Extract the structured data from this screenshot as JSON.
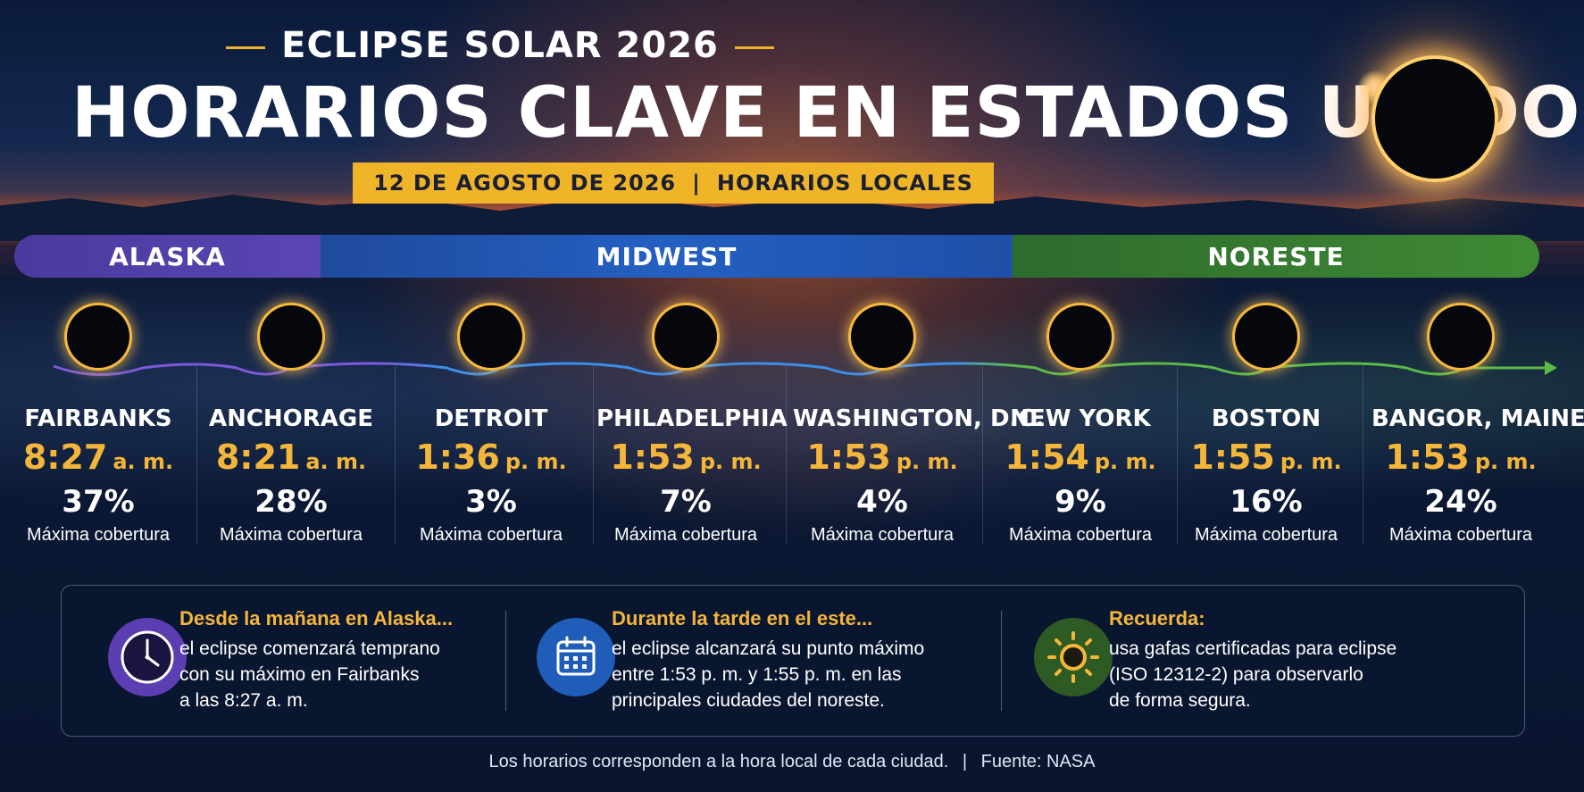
{
  "header": {
    "kicker": "ECLIPSE SOLAR 2026",
    "headline": "HORARIOS CLAVE EN ESTADOS UNIDOS",
    "date": "12 DE AGOSTO DE 2026",
    "date_separator": "|",
    "timezone_note": "HORARIOS LOCALES"
  },
  "regions": [
    {
      "label": "ALASKA",
      "color": "#5a45b4"
    },
    {
      "label": "MIDWEST",
      "color": "#2460c2"
    },
    {
      "label": "NORESTE",
      "color": "#3f8a34"
    }
  ],
  "cities": [
    {
      "name": "FAIRBANKS",
      "time": "8:27",
      "ampm": "a. m.",
      "coverage": "37%",
      "caption": "Máxima cobertura"
    },
    {
      "name": "ANCHORAGE",
      "time": "8:21",
      "ampm": "a. m.",
      "coverage": "28%",
      "caption": "Máxima cobertura"
    },
    {
      "name": "DETROIT",
      "time": "1:36",
      "ampm": "p. m.",
      "coverage": "3%",
      "caption": "Máxima cobertura"
    },
    {
      "name": "PHILADELPHIA",
      "time": "1:53",
      "ampm": "p. m.",
      "coverage": "7%",
      "caption": "Máxima cobertura"
    },
    {
      "name": "WASHINGTON, D.C.",
      "time": "1:53",
      "ampm": "p. m.",
      "coverage": "4%",
      "caption": "Máxima cobertura"
    },
    {
      "name": "NEW YORK",
      "time": "1:54",
      "ampm": "p. m.",
      "coverage": "9%",
      "caption": "Máxima cobertura"
    },
    {
      "name": "BOSTON",
      "time": "1:55",
      "ampm": "p. m.",
      "coverage": "16%",
      "caption": "Máxima cobertura"
    },
    {
      "name": "BANGOR, MAINE",
      "time": "1:53",
      "ampm": "p. m.",
      "coverage": "24%",
      "caption": "Máxima cobertura"
    }
  ],
  "notes": [
    {
      "icon": "clock-icon",
      "title": "Desde la mañana en Alaska...",
      "lines": [
        "el eclipse comenzará temprano",
        "con su máximo en Fairbanks",
        "a las 8:27 a. m."
      ]
    },
    {
      "icon": "calendar-icon",
      "title": "Durante la tarde en el este...",
      "lines": [
        "el eclipse alcanzará su punto máximo",
        "entre 1:53 p. m. y 1:55 p. m. en las",
        "principales ciudades del noreste."
      ]
    },
    {
      "icon": "sun-icon",
      "title": "Recuerda:",
      "lines": [
        "usa gafas certificadas para eclipse",
        "(ISO 12312-2) para observarlo",
        "de forma segura."
      ]
    }
  ],
  "footer": {
    "text": "Los horarios corresponden a la hora local de cada ciudad.",
    "separator": "|",
    "source": "Fuente: NASA"
  },
  "colors": {
    "accent": "#f4b63a",
    "background": "#0a1630"
  }
}
